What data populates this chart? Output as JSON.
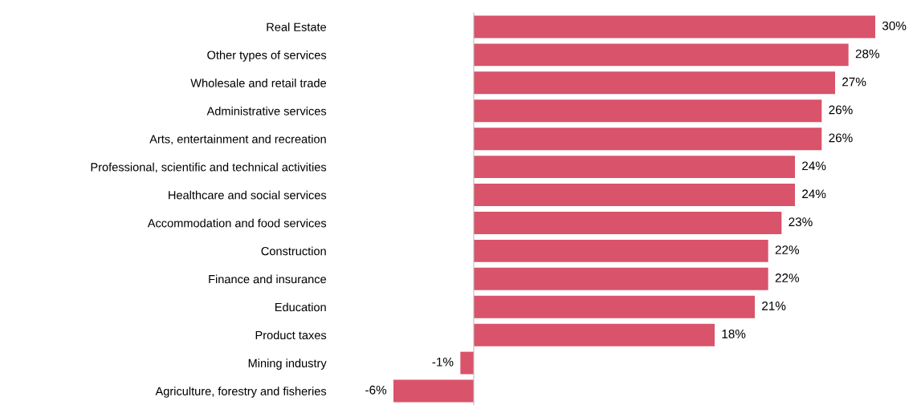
{
  "chart_data": {
    "type": "bar",
    "orientation": "horizontal",
    "value_labels": [
      "30%",
      "28%",
      "27%",
      "26%",
      "26%",
      "24%",
      "24%",
      "23%",
      "22%",
      "22%",
      "21%",
      "18%",
      "-1%",
      "-6%"
    ],
    "grid": false,
    "legend": false,
    "categories": [
      "Real Estate",
      "Other types of services",
      "Wholesale and retail trade",
      "Administrative services",
      "Arts, entertainment and recreation",
      "Professional, scientific and technical activities",
      "Healthcare and social services",
      "Accommodation and food services",
      "Construction",
      "Finance and insurance",
      "Education",
      "Product taxes",
      "Mining industry",
      "Agriculture, forestry and fisheries"
    ],
    "values": [
      30,
      28,
      27,
      26,
      26,
      24,
      24,
      23,
      22,
      22,
      21,
      18,
      -1,
      -6
    ],
    "color": "#d9536a"
  }
}
